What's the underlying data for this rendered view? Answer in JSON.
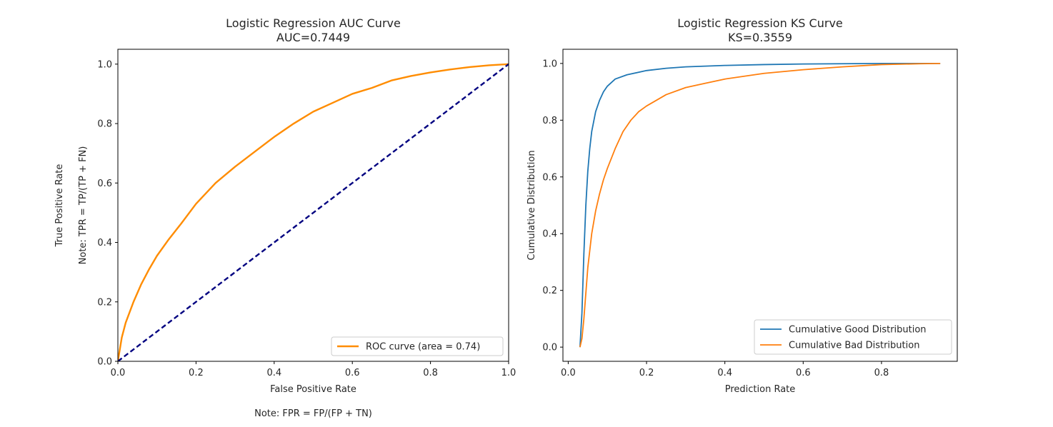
{
  "chart_data": [
    {
      "type": "line",
      "title": "Logistic Regression AUC Curve",
      "subtitle": "AUC=0.7449",
      "xlabel": "False Positive Rate",
      "ylabel": "True Positive Rate",
      "ylabel_note": "Note: TPR = TP/(TP + FN)",
      "x_note": "Note: FPR = FP/(FP + TN)",
      "xlim": [
        0,
        1
      ],
      "ylim": [
        0,
        1.05
      ],
      "xticks": [
        "0.0",
        "0.2",
        "0.4",
        "0.6",
        "0.8",
        "1.0"
      ],
      "yticks": [
        "0.0",
        "0.2",
        "0.4",
        "0.6",
        "0.8",
        "1.0"
      ],
      "grid": false,
      "legend_position": "lower right",
      "series": [
        {
          "name": "ROC curve (area = 0.74)",
          "color": "#ff8c00",
          "style": "solid",
          "x": [
            0,
            0.01,
            0.02,
            0.04,
            0.06,
            0.08,
            0.1,
            0.13,
            0.16,
            0.2,
            0.25,
            0.3,
            0.35,
            0.4,
            0.45,
            0.5,
            0.55,
            0.6,
            0.65,
            0.7,
            0.75,
            0.8,
            0.85,
            0.9,
            0.95,
            1.0
          ],
          "y": [
            0,
            0.08,
            0.13,
            0.2,
            0.26,
            0.31,
            0.355,
            0.41,
            0.46,
            0.53,
            0.6,
            0.655,
            0.705,
            0.755,
            0.8,
            0.84,
            0.87,
            0.9,
            0.92,
            0.945,
            0.96,
            0.972,
            0.982,
            0.99,
            0.996,
            1.0
          ]
        },
        {
          "name": "",
          "color": "#000080",
          "style": "dashed",
          "x": [
            0,
            1
          ],
          "y": [
            0,
            1
          ]
        }
      ]
    },
    {
      "type": "line",
      "title": "Logistic Regression KS Curve",
      "subtitle": "KS=0.3559",
      "xlabel": "Prediction Rate",
      "ylabel": "Cumulative Distribution",
      "xlim": [
        -0.0135,
        0.9935
      ],
      "ylim": [
        -0.05,
        1.05
      ],
      "xticks": [
        "0.0",
        "0.2",
        "0.4",
        "0.6",
        "0.8"
      ],
      "yticks": [
        "0.0",
        "0.2",
        "0.4",
        "0.6",
        "0.8",
        "1.0"
      ],
      "grid": false,
      "legend_position": "lower right",
      "series": [
        {
          "name": "Cumulative Good Distribution",
          "color": "#1f77b4",
          "x": [
            0.03,
            0.035,
            0.04,
            0.045,
            0.05,
            0.055,
            0.06,
            0.07,
            0.08,
            0.09,
            0.1,
            0.12,
            0.15,
            0.2,
            0.25,
            0.3,
            0.4,
            0.5,
            0.6,
            0.7,
            0.8,
            0.95
          ],
          "y": [
            0.0,
            0.12,
            0.33,
            0.5,
            0.62,
            0.7,
            0.76,
            0.83,
            0.87,
            0.9,
            0.92,
            0.945,
            0.96,
            0.975,
            0.983,
            0.988,
            0.993,
            0.996,
            0.998,
            0.999,
            1.0,
            1.0
          ]
        },
        {
          "name": "Cumulative Bad Distribution",
          "color": "#ff7f0e",
          "x": [
            0.03,
            0.035,
            0.04,
            0.05,
            0.06,
            0.07,
            0.08,
            0.09,
            0.1,
            0.12,
            0.14,
            0.16,
            0.18,
            0.2,
            0.25,
            0.3,
            0.35,
            0.4,
            0.5,
            0.6,
            0.7,
            0.8,
            0.9,
            0.95
          ],
          "y": [
            0.0,
            0.03,
            0.1,
            0.28,
            0.4,
            0.48,
            0.54,
            0.59,
            0.63,
            0.7,
            0.76,
            0.8,
            0.83,
            0.85,
            0.89,
            0.915,
            0.93,
            0.945,
            0.965,
            0.978,
            0.988,
            0.996,
            0.999,
            1.0
          ]
        }
      ]
    }
  ]
}
